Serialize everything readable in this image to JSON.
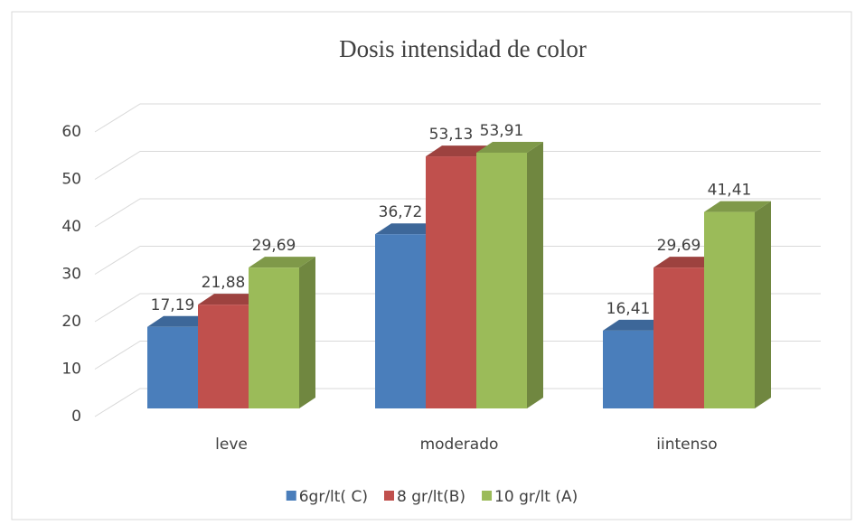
{
  "chart_data": {
    "type": "bar3d",
    "title": "Dosis intensidad de color",
    "categories": [
      "leve",
      "moderado",
      "iintenso"
    ],
    "series": [
      {
        "name": "6gr/lt( C)",
        "color": "#4a7ebb",
        "values": [
          17.19,
          36.72,
          16.41
        ],
        "value_labels": [
          "17,19",
          "36,72",
          "16,41"
        ]
      },
      {
        "name": "8 gr/lt(B)",
        "color": "#c0504d",
        "values": [
          21.88,
          53.13,
          29.69
        ],
        "value_labels": [
          "21,88",
          "53,13",
          "29,69"
        ]
      },
      {
        "name": "10 gr/lt (A)",
        "color": "#9bbb59",
        "values": [
          29.69,
          53.91,
          41.41
        ],
        "value_labels": [
          "29,69",
          "53,91",
          "41,41"
        ]
      }
    ],
    "ylim": [
      0,
      60
    ],
    "yticks": [
      0,
      10,
      20,
      30,
      40,
      50,
      60
    ],
    "grid": true,
    "legend": "bottom"
  }
}
